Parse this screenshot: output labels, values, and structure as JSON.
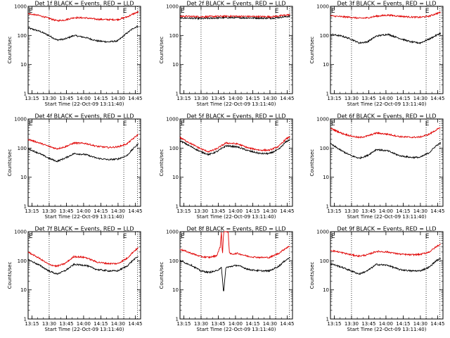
{
  "figure": {
    "colors": {
      "events": "#000000",
      "lld": "#e00000",
      "background": "#ffffff"
    },
    "xlabel": "Start Time (22-Oct-09 13:11:40)",
    "ylabel": "Counts/sec",
    "x_ticks": [
      "13:15",
      "13:30",
      "13:45",
      "14:00",
      "14:15",
      "14:30",
      "14:45"
    ],
    "y_ticks": [
      "1",
      "10",
      "100",
      "1000"
    ],
    "x_ticks_minutes": [
      3.33,
      18.33,
      33.33,
      48.33,
      63.33,
      78.33,
      93.33
    ],
    "dotted_lines_minutes": [
      18.33,
      83.33,
      95.33
    ],
    "corner_marks": [
      "E",
      "E"
    ],
    "corner_marks_minutes": [
      0.5,
      82.5
    ]
  },
  "chart_data": [
    {
      "type": "line",
      "title": "Det 1f BLACK = Events, RED = LLD",
      "xlim_minutes": [
        0,
        98
      ],
      "ylim": [
        1,
        1000
      ],
      "yscale": "log",
      "series": [
        {
          "name": "Events",
          "color": "#000000",
          "x": [
            0,
            10,
            18,
            25,
            32,
            40,
            50,
            60,
            70,
            78,
            86,
            92,
            96
          ],
          "values": [
            180,
            140,
            100,
            70,
            75,
            100,
            85,
            65,
            60,
            65,
            120,
            180,
            210
          ]
        },
        {
          "name": "LLD",
          "color": "#e00000",
          "x": [
            0,
            10,
            18,
            25,
            32,
            40,
            50,
            60,
            70,
            78,
            86,
            92,
            96
          ],
          "values": [
            560,
            480,
            390,
            320,
            340,
            410,
            400,
            360,
            350,
            350,
            430,
            560,
            640
          ]
        }
      ]
    },
    {
      "type": "line",
      "title": "Det 2f BLACK = Events, RED = LLD",
      "xlim_minutes": [
        0,
        98
      ],
      "ylim": [
        1,
        1000
      ],
      "yscale": "log",
      "series": [
        {
          "name": "Events",
          "color": "#000000",
          "x": [
            0,
            20,
            40,
            60,
            80,
            96
          ],
          "values": [
            400,
            380,
            410,
            400,
            390,
            460
          ]
        },
        {
          "name": "LLD",
          "color": "#e00000",
          "x": [
            0,
            20,
            40,
            60,
            80,
            96
          ],
          "values": [
            460,
            440,
            460,
            450,
            440,
            520
          ]
        }
      ]
    },
    {
      "type": "line",
      "title": "Det 3f BLACK = Events, RED = LLD",
      "xlim_minutes": [
        0,
        98
      ],
      "ylim": [
        1,
        1000
      ],
      "yscale": "log",
      "series": [
        {
          "name": "Events",
          "color": "#000000",
          "x": [
            0,
            10,
            18,
            25,
            32,
            40,
            50,
            60,
            70,
            78,
            86,
            92,
            96
          ],
          "values": [
            110,
            95,
            75,
            55,
            60,
            95,
            110,
            80,
            60,
            55,
            75,
            100,
            120
          ]
        },
        {
          "name": "LLD",
          "color": "#e00000",
          "x": [
            0,
            10,
            18,
            25,
            32,
            40,
            50,
            60,
            70,
            78,
            86,
            92,
            96
          ],
          "values": [
            470,
            440,
            420,
            390,
            400,
            460,
            500,
            460,
            430,
            420,
            460,
            560,
            620
          ]
        }
      ]
    },
    {
      "type": "line",
      "title": "Det 4f BLACK = Events, RED = LLD",
      "xlim_minutes": [
        0,
        98
      ],
      "ylim": [
        1,
        1000
      ],
      "yscale": "log",
      "series": [
        {
          "name": "Events",
          "color": "#000000",
          "x": [
            0,
            10,
            18,
            25,
            32,
            40,
            50,
            60,
            70,
            78,
            86,
            92,
            96
          ],
          "values": [
            95,
            65,
            45,
            35,
            45,
            65,
            60,
            45,
            40,
            42,
            55,
            100,
            140
          ]
        },
        {
          "name": "LLD",
          "color": "#e00000",
          "x": [
            0,
            10,
            18,
            25,
            32,
            40,
            50,
            60,
            70,
            78,
            86,
            92,
            96
          ],
          "values": [
            200,
            150,
            115,
            95,
            110,
            150,
            145,
            115,
            105,
            110,
            140,
            220,
            300
          ]
        }
      ]
    },
    {
      "type": "line",
      "title": "Det 5f BLACK = Events, RED = LLD",
      "xlim_minutes": [
        0,
        98
      ],
      "ylim": [
        1,
        1000
      ],
      "yscale": "log",
      "series": [
        {
          "name": "Events",
          "color": "#000000",
          "x": [
            0,
            10,
            18,
            25,
            32,
            40,
            50,
            60,
            70,
            78,
            86,
            92,
            96
          ],
          "values": [
            180,
            110,
            75,
            60,
            75,
            120,
            110,
            80,
            65,
            65,
            90,
            160,
            200
          ]
        },
        {
          "name": "LLD",
          "color": "#e00000",
          "x": [
            0,
            10,
            18,
            25,
            32,
            40,
            50,
            60,
            70,
            78,
            86,
            92,
            96
          ],
          "values": [
            230,
            140,
            95,
            75,
            95,
            150,
            140,
            100,
            85,
            85,
            115,
            200,
            250
          ]
        }
      ]
    },
    {
      "type": "line",
      "title": "Det 6f BLACK = Events, RED = LLD",
      "xlim_minutes": [
        0,
        98
      ],
      "ylim": [
        1,
        1000
      ],
      "yscale": "log",
      "series": [
        {
          "name": "Events",
          "color": "#000000",
          "x": [
            0,
            10,
            18,
            25,
            32,
            40,
            50,
            60,
            70,
            78,
            86,
            92,
            96
          ],
          "values": [
            140,
            80,
            55,
            45,
            55,
            90,
            80,
            55,
            48,
            48,
            70,
            120,
            150
          ]
        },
        {
          "name": "LLD",
          "color": "#e00000",
          "x": [
            0,
            10,
            18,
            25,
            32,
            40,
            50,
            60,
            70,
            78,
            86,
            92,
            96
          ],
          "values": [
            480,
            320,
            260,
            230,
            260,
            330,
            300,
            250,
            235,
            240,
            300,
            420,
            500
          ]
        }
      ]
    },
    {
      "type": "line",
      "title": "Det 7f BLACK = Events, RED = LLD",
      "xlim_minutes": [
        0,
        98
      ],
      "ylim": [
        1,
        1000
      ],
      "yscale": "log",
      "series": [
        {
          "name": "Events",
          "color": "#000000",
          "x": [
            0,
            10,
            18,
            25,
            32,
            40,
            50,
            60,
            70,
            78,
            86,
            92,
            96
          ],
          "values": [
            110,
            70,
            45,
            35,
            45,
            75,
            70,
            50,
            45,
            45,
            65,
            110,
            140
          ]
        },
        {
          "name": "LLD",
          "color": "#e00000",
          "x": [
            0,
            10,
            18,
            25,
            32,
            40,
            50,
            60,
            70,
            78,
            86,
            92,
            96
          ],
          "values": [
            200,
            120,
            75,
            65,
            80,
            140,
            130,
            90,
            80,
            80,
            120,
            210,
            280
          ]
        }
      ]
    },
    {
      "type": "line",
      "title": "Det 8f BLACK = Events, RED = LLD",
      "xlim_minutes": [
        0,
        98
      ],
      "ylim": [
        1,
        1000
      ],
      "yscale": "log",
      "series": [
        {
          "name": "Events",
          "color": "#000000",
          "x": [
            0,
            10,
            18,
            25,
            32,
            36,
            38,
            40,
            42,
            45,
            50,
            60,
            70,
            78,
            86,
            92,
            96
          ],
          "values": [
            100,
            70,
            45,
            40,
            45,
            60,
            8,
            60,
            60,
            65,
            70,
            50,
            45,
            45,
            65,
            105,
            130
          ]
        },
        {
          "name": "LLD",
          "color": "#e00000",
          "x": [
            0,
            10,
            18,
            25,
            32,
            35,
            36,
            37,
            38,
            39,
            42,
            43,
            45,
            50,
            60,
            70,
            78,
            86,
            92,
            96
          ],
          "values": [
            250,
            180,
            140,
            130,
            150,
            300,
            1000,
            150,
            1000,
            1000,
            1000,
            180,
            170,
            180,
            140,
            130,
            130,
            180,
            270,
            320
          ]
        }
      ]
    },
    {
      "type": "line",
      "title": "Det 9f BLACK = Events, RED = LLD",
      "xlim_minutes": [
        0,
        98
      ],
      "ylim": [
        1,
        1000
      ],
      "yscale": "log",
      "series": [
        {
          "name": "Events",
          "color": "#000000",
          "x": [
            0,
            10,
            18,
            25,
            32,
            40,
            50,
            60,
            70,
            78,
            86,
            92,
            96
          ],
          "values": [
            80,
            60,
            45,
            35,
            45,
            75,
            70,
            50,
            45,
            45,
            60,
            100,
            120
          ]
        },
        {
          "name": "LLD",
          "color": "#e00000",
          "x": [
            0,
            10,
            18,
            25,
            32,
            40,
            50,
            60,
            70,
            78,
            86,
            92,
            96
          ],
          "values": [
            230,
            190,
            160,
            145,
            160,
            210,
            200,
            170,
            160,
            165,
            200,
            300,
            380
          ]
        }
      ]
    }
  ]
}
